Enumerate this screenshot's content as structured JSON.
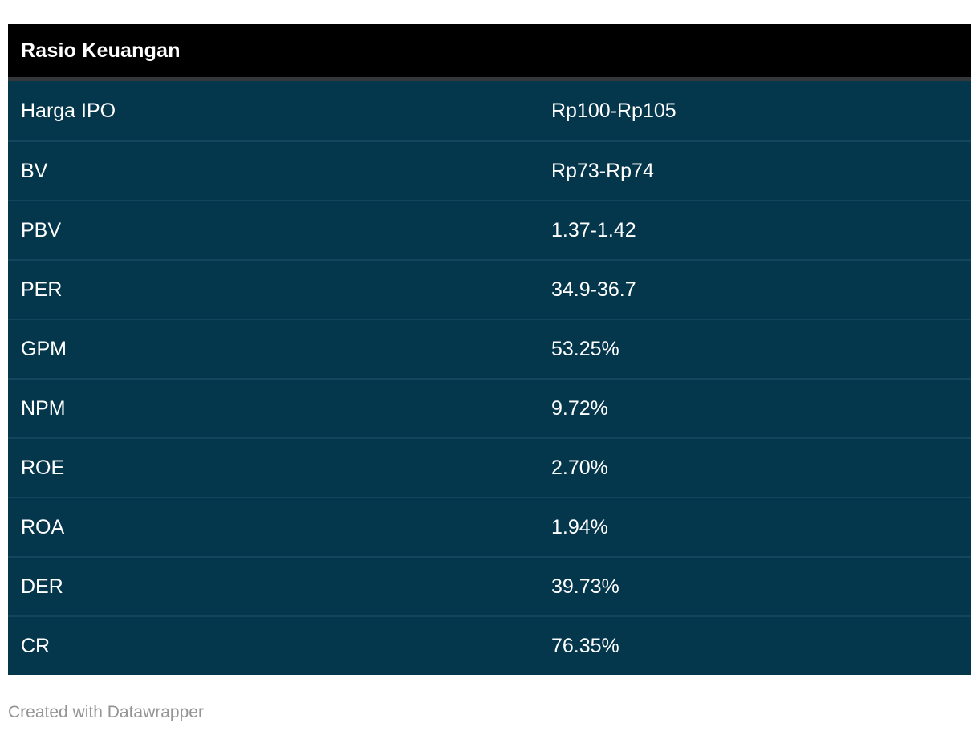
{
  "chart_data": {
    "type": "table",
    "title": "Rasio Keuangan",
    "rows": [
      {
        "label": "Harga IPO",
        "value": "Rp100-Rp105"
      },
      {
        "label": "BV",
        "value": "Rp73-Rp74"
      },
      {
        "label": "PBV",
        "value": "1.37-1.42"
      },
      {
        "label": "PER",
        "value": "34.9-36.7"
      },
      {
        "label": "GPM",
        "value": "53.25%"
      },
      {
        "label": "NPM",
        "value": "9.72%"
      },
      {
        "label": "ROE",
        "value": "2.70%"
      },
      {
        "label": "ROA",
        "value": "1.94%"
      },
      {
        "label": "DER",
        "value": "39.73%"
      },
      {
        "label": "CR",
        "value": "76.35%"
      }
    ],
    "layout": {
      "header_position": "top",
      "grid": "horizontal-dividers",
      "column_count": 2
    }
  },
  "footer": {
    "credit": "Created with Datawrapper"
  },
  "colors": {
    "page_bg": "#ffffff",
    "header_bg": "#000000",
    "title_text": "#ffffff",
    "header_divider": "#35383b",
    "row_bg": "#04374c",
    "row_divider": "#11465c",
    "row_text": "#ffffff",
    "credit_text": "#949494"
  }
}
